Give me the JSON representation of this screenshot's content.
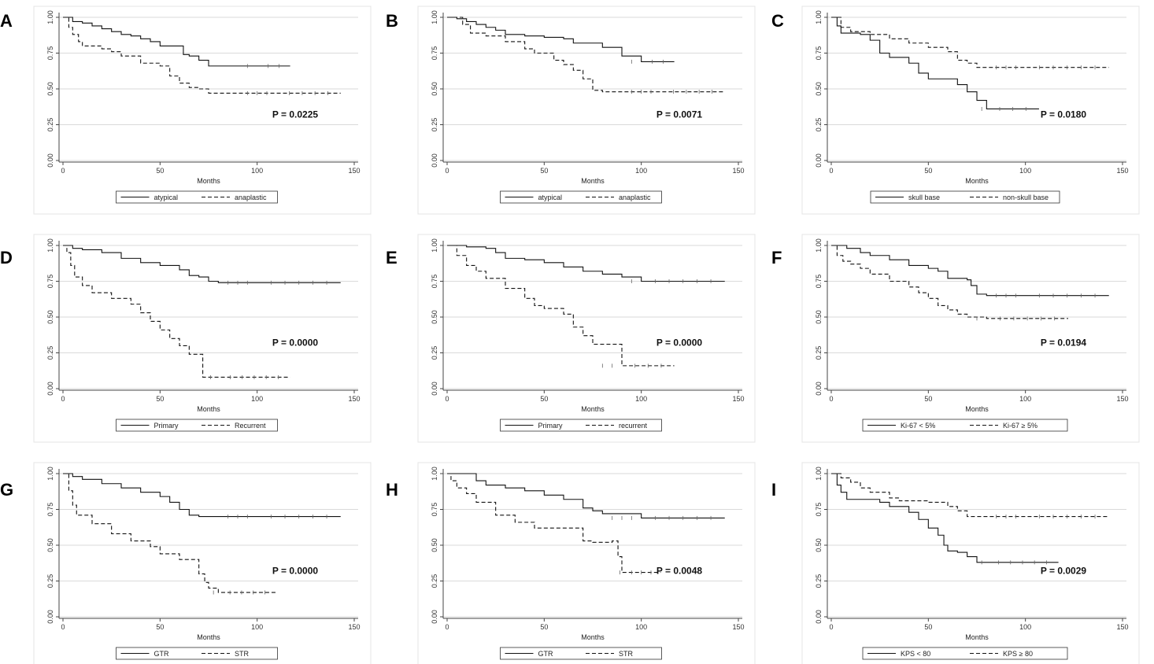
{
  "figure": {
    "id": "kaplan-meier-grid"
  },
  "chart_data": [
    {
      "panel": "A",
      "type": "line",
      "xlabel": "Months",
      "ylabel": "",
      "xlim": [
        0,
        150
      ],
      "ylim": [
        0,
        1
      ],
      "xticks": [
        0,
        50,
        100,
        150
      ],
      "yticks": [
        "0.00",
        "0.25",
        "0.50",
        "0.75",
        "1.00"
      ],
      "grid": true,
      "pvalue": "P = 0.0225",
      "series": [
        {
          "name": "atypical",
          "style": "solid",
          "x": [
            0,
            5,
            10,
            15,
            20,
            25,
            30,
            35,
            40,
            45,
            50,
            60,
            62,
            65,
            70,
            75,
            80,
            90,
            100,
            117
          ],
          "y": [
            1.0,
            0.97,
            0.96,
            0.94,
            0.92,
            0.9,
            0.88,
            0.87,
            0.85,
            0.83,
            0.8,
            0.8,
            0.74,
            0.73,
            0.7,
            0.66,
            0.66,
            0.66,
            0.66,
            0.66
          ]
        },
        {
          "name": "anaplastic",
          "style": "dashed",
          "x": [
            0,
            3,
            5,
            8,
            10,
            20,
            25,
            30,
            40,
            50,
            55,
            60,
            65,
            70,
            75,
            90,
            110,
            143
          ],
          "y": [
            1.0,
            0.93,
            0.88,
            0.83,
            0.8,
            0.78,
            0.76,
            0.73,
            0.68,
            0.66,
            0.59,
            0.54,
            0.51,
            0.5,
            0.47,
            0.47,
            0.47,
            0.47
          ]
        }
      ]
    },
    {
      "panel": "B",
      "type": "line",
      "xlabel": "Months",
      "ylabel": "",
      "xlim": [
        0,
        150
      ],
      "ylim": [
        0,
        1
      ],
      "xticks": [
        0,
        50,
        100,
        150
      ],
      "yticks": [
        "0.00",
        "0.25",
        "0.50",
        "0.75",
        "1.00"
      ],
      "grid": true,
      "pvalue": "P = 0.0071",
      "series": [
        {
          "name": "atypical",
          "style": "solid",
          "x": [
            0,
            5,
            10,
            15,
            20,
            25,
            30,
            40,
            50,
            60,
            65,
            70,
            80,
            85,
            90,
            100,
            117
          ],
          "y": [
            1.0,
            0.99,
            0.97,
            0.95,
            0.93,
            0.91,
            0.88,
            0.87,
            0.86,
            0.85,
            0.82,
            0.82,
            0.79,
            0.79,
            0.73,
            0.69,
            0.69
          ]
        },
        {
          "name": "anaplastic",
          "style": "dashed",
          "x": [
            0,
            8,
            12,
            20,
            30,
            40,
            45,
            55,
            60,
            65,
            70,
            75,
            80,
            90,
            110,
            143
          ],
          "y": [
            1.0,
            0.95,
            0.89,
            0.87,
            0.83,
            0.78,
            0.75,
            0.7,
            0.67,
            0.63,
            0.57,
            0.49,
            0.48,
            0.48,
            0.48,
            0.48
          ]
        }
      ]
    },
    {
      "panel": "C",
      "type": "line",
      "xlabel": "Months",
      "ylabel": "",
      "xlim": [
        0,
        150
      ],
      "ylim": [
        0,
        1
      ],
      "xticks": [
        0,
        50,
        100,
        150
      ],
      "yticks": [
        "0.00",
        "0.25",
        "0.50",
        "0.75",
        "1.00"
      ],
      "grid": true,
      "pvalue": "P = 0.0180",
      "series": [
        {
          "name": "skull base",
          "style": "solid",
          "x": [
            0,
            3,
            5,
            15,
            20,
            25,
            30,
            40,
            45,
            50,
            60,
            65,
            70,
            75,
            80,
            107
          ],
          "y": [
            1.0,
            0.94,
            0.89,
            0.88,
            0.84,
            0.75,
            0.72,
            0.68,
            0.61,
            0.57,
            0.57,
            0.53,
            0.48,
            0.42,
            0.36,
            0.36
          ]
        },
        {
          "name": "non-skull base",
          "style": "dashed",
          "x": [
            0,
            5,
            10,
            20,
            30,
            40,
            50,
            60,
            65,
            70,
            75,
            80,
            100,
            143
          ],
          "y": [
            1.0,
            0.93,
            0.9,
            0.88,
            0.85,
            0.82,
            0.79,
            0.76,
            0.7,
            0.68,
            0.65,
            0.65,
            0.65,
            0.65
          ]
        }
      ]
    },
    {
      "panel": "D",
      "type": "line",
      "xlabel": "Months",
      "ylabel": "",
      "xlim": [
        0,
        150
      ],
      "ylim": [
        0,
        1
      ],
      "xticks": [
        0,
        50,
        100,
        150
      ],
      "yticks": [
        "0.00",
        "0.25",
        "0.50",
        "0.75",
        "1.00"
      ],
      "grid": true,
      "pvalue": "P = 0.0000",
      "series": [
        {
          "name": "Primary",
          "style": "solid",
          "x": [
            0,
            5,
            10,
            20,
            30,
            40,
            50,
            60,
            65,
            70,
            75,
            80,
            100,
            143
          ],
          "y": [
            1.0,
            0.98,
            0.97,
            0.95,
            0.91,
            0.88,
            0.86,
            0.83,
            0.79,
            0.78,
            0.75,
            0.74,
            0.74,
            0.74
          ]
        },
        {
          "name": "Recurrent",
          "style": "dashed",
          "x": [
            0,
            2,
            4,
            6,
            10,
            15,
            25,
            35,
            40,
            45,
            50,
            55,
            60,
            65,
            72,
            80,
            117
          ],
          "y": [
            1.0,
            0.95,
            0.86,
            0.78,
            0.72,
            0.67,
            0.63,
            0.59,
            0.53,
            0.47,
            0.41,
            0.35,
            0.3,
            0.24,
            0.08,
            0.08,
            0.08
          ]
        }
      ]
    },
    {
      "panel": "E",
      "type": "line",
      "xlabel": "Months",
      "ylabel": "",
      "xlim": [
        0,
        150
      ],
      "ylim": [
        0,
        1
      ],
      "xticks": [
        0,
        50,
        100,
        150
      ],
      "yticks": [
        "0.00",
        "0.25",
        "0.50",
        "0.75",
        "1.00"
      ],
      "grid": true,
      "pvalue": "P = 0.0000",
      "series": [
        {
          "name": "Primary",
          "style": "solid",
          "x": [
            0,
            10,
            20,
            25,
            30,
            40,
            50,
            60,
            70,
            80,
            90,
            100,
            143
          ],
          "y": [
            1.0,
            0.99,
            0.98,
            0.95,
            0.91,
            0.9,
            0.88,
            0.85,
            0.82,
            0.8,
            0.78,
            0.75,
            0.75
          ]
        },
        {
          "name": "recurrent",
          "style": "dashed",
          "x": [
            0,
            5,
            10,
            15,
            20,
            30,
            40,
            45,
            50,
            60,
            65,
            70,
            75,
            90,
            117
          ],
          "y": [
            1.0,
            0.93,
            0.86,
            0.82,
            0.77,
            0.7,
            0.63,
            0.58,
            0.56,
            0.52,
            0.43,
            0.37,
            0.31,
            0.16,
            0.16
          ]
        }
      ]
    },
    {
      "panel": "F",
      "type": "line",
      "xlabel": "Months",
      "ylabel": "",
      "xlim": [
        0,
        150
      ],
      "ylim": [
        0,
        1
      ],
      "xticks": [
        0,
        50,
        100,
        150
      ],
      "yticks": [
        "0.00",
        "0.25",
        "0.50",
        "0.75",
        "1.00"
      ],
      "grid": true,
      "pvalue": "P = 0.0194",
      "series": [
        {
          "name": "Ki-67 < 5%",
          "style": "solid",
          "x": [
            0,
            8,
            15,
            20,
            30,
            40,
            50,
            55,
            60,
            70,
            72,
            75,
            80,
            100,
            143
          ],
          "y": [
            1.0,
            0.98,
            0.95,
            0.93,
            0.9,
            0.86,
            0.84,
            0.82,
            0.77,
            0.76,
            0.72,
            0.66,
            0.65,
            0.65,
            0.65
          ]
        },
        {
          "name": "Ki-67 ≥ 5%",
          "style": "dashed",
          "x": [
            0,
            3,
            6,
            10,
            15,
            20,
            30,
            40,
            45,
            50,
            55,
            60,
            65,
            70,
            80,
            122
          ],
          "y": [
            1.0,
            0.93,
            0.89,
            0.87,
            0.84,
            0.8,
            0.75,
            0.71,
            0.67,
            0.63,
            0.58,
            0.55,
            0.52,
            0.5,
            0.49,
            0.49
          ]
        }
      ]
    },
    {
      "panel": "G",
      "type": "line",
      "xlabel": "Months",
      "ylabel": "",
      "xlim": [
        0,
        150
      ],
      "ylim": [
        0,
        1
      ],
      "xticks": [
        0,
        50,
        100,
        150
      ],
      "yticks": [
        "0.00",
        "0.25",
        "0.50",
        "0.75",
        "1.00"
      ],
      "grid": true,
      "pvalue": "P = 0.0000",
      "series": [
        {
          "name": "GTR",
          "style": "solid",
          "x": [
            0,
            5,
            10,
            20,
            30,
            40,
            50,
            55,
            60,
            65,
            70,
            80,
            100,
            143
          ],
          "y": [
            1.0,
            0.98,
            0.96,
            0.93,
            0.9,
            0.87,
            0.84,
            0.8,
            0.75,
            0.71,
            0.7,
            0.7,
            0.7,
            0.7
          ]
        },
        {
          "name": "STR",
          "style": "dashed",
          "x": [
            0,
            3,
            5,
            7,
            15,
            25,
            35,
            45,
            50,
            60,
            70,
            73,
            75,
            80,
            110
          ],
          "y": [
            1.0,
            0.88,
            0.78,
            0.71,
            0.65,
            0.58,
            0.53,
            0.49,
            0.44,
            0.4,
            0.3,
            0.24,
            0.2,
            0.17,
            0.17
          ]
        }
      ]
    },
    {
      "panel": "H",
      "type": "line",
      "xlabel": "Months",
      "ylabel": "",
      "xlim": [
        0,
        150
      ],
      "ylim": [
        0,
        1
      ],
      "xticks": [
        0,
        50,
        100,
        150
      ],
      "yticks": [
        "0.00",
        "0.25",
        "0.50",
        "0.75",
        "1.00"
      ],
      "grid": true,
      "pvalue": "P = 0.0048",
      "series": [
        {
          "name": "GTR",
          "style": "solid",
          "x": [
            0,
            10,
            15,
            20,
            30,
            40,
            50,
            60,
            70,
            75,
            80,
            100,
            143
          ],
          "y": [
            1.0,
            1.0,
            0.95,
            0.92,
            0.9,
            0.88,
            0.85,
            0.82,
            0.76,
            0.74,
            0.72,
            0.69,
            0.69
          ]
        },
        {
          "name": "STR",
          "style": "dashed",
          "x": [
            0,
            2,
            5,
            10,
            15,
            25,
            35,
            45,
            55,
            70,
            75,
            85,
            88,
            90,
            110
          ],
          "y": [
            1.0,
            0.95,
            0.9,
            0.86,
            0.8,
            0.71,
            0.66,
            0.62,
            0.62,
            0.53,
            0.52,
            0.53,
            0.42,
            0.31,
            0.31
          ]
        }
      ]
    },
    {
      "panel": "I",
      "type": "line",
      "xlabel": "Months",
      "ylabel": "",
      "xlim": [
        0,
        150
      ],
      "ylim": [
        0,
        1
      ],
      "xticks": [
        0,
        50,
        100,
        150
      ],
      "yticks": [
        "0.00",
        "0.25",
        "0.50",
        "0.75",
        "1.00"
      ],
      "grid": true,
      "pvalue": "P = 0.0029",
      "series": [
        {
          "name": "KPS < 80",
          "style": "solid",
          "x": [
            0,
            3,
            5,
            8,
            25,
            30,
            40,
            45,
            50,
            55,
            58,
            60,
            65,
            70,
            75,
            80,
            117
          ],
          "y": [
            1.0,
            0.92,
            0.87,
            0.82,
            0.8,
            0.77,
            0.73,
            0.68,
            0.62,
            0.57,
            0.5,
            0.46,
            0.45,
            0.42,
            0.38,
            0.38,
            0.38
          ]
        },
        {
          "name": "KPS ≥ 80",
          "style": "dashed",
          "x": [
            0,
            5,
            10,
            15,
            20,
            30,
            35,
            40,
            50,
            60,
            65,
            70,
            80,
            100,
            143
          ],
          "y": [
            1.0,
            0.97,
            0.94,
            0.9,
            0.87,
            0.83,
            0.81,
            0.81,
            0.8,
            0.77,
            0.74,
            0.7,
            0.7,
            0.7,
            0.7
          ]
        }
      ]
    }
  ]
}
